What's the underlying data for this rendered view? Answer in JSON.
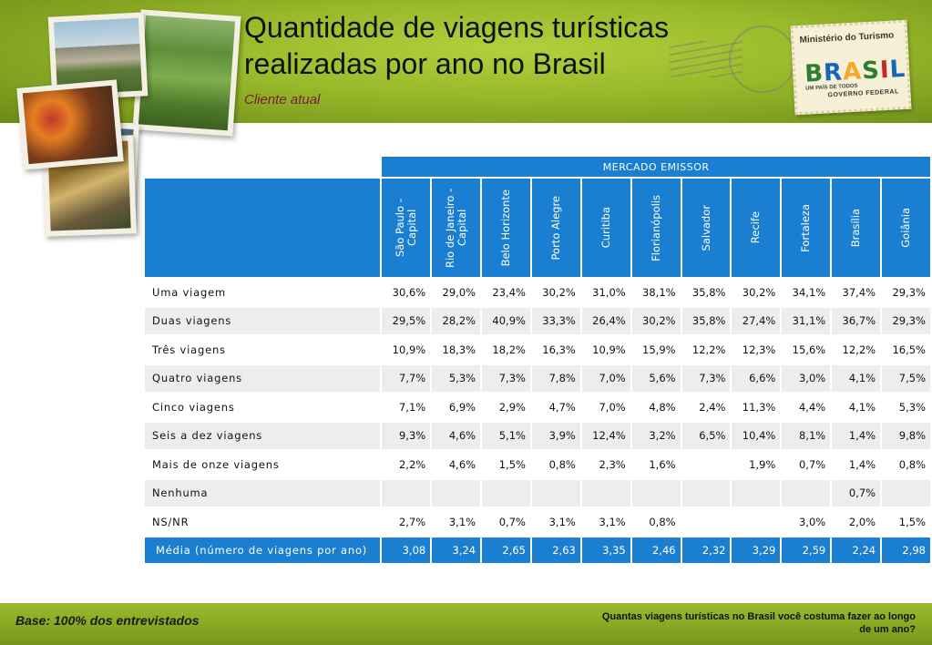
{
  "header": {
    "title": "Quantidade de viagens turísticas realizadas por ano no Brasil",
    "subtitle": "Cliente atual"
  },
  "logo": {
    "ministerio": "Ministério do Turismo",
    "brasil": [
      "B",
      "R",
      "A",
      "S",
      "I",
      "L"
    ],
    "tagline": "UM PAÍS DE TODOS",
    "governo": "GOVERNO FEDERAL"
  },
  "table": {
    "group_header": "MERCADO EMISSOR",
    "columns": [
      "São Paulo - Capital",
      "Rio de Janeiro - Capital",
      "Belo Horizonte",
      "Porto Alegre",
      "Curitiba",
      "Florianópolis",
      "Salvador",
      "Recife",
      "Fortaleza",
      "Brasília",
      "Goiânia"
    ],
    "rows": [
      {
        "label": "Uma viagem",
        "values": [
          "30,6%",
          "29,0%",
          "23,4%",
          "30,2%",
          "31,0%",
          "38,1%",
          "35,8%",
          "30,2%",
          "34,1%",
          "37,4%",
          "29,3%"
        ]
      },
      {
        "label": "Duas viagens",
        "values": [
          "29,5%",
          "28,2%",
          "40,9%",
          "33,3%",
          "26,4%",
          "30,2%",
          "35,8%",
          "27,4%",
          "31,1%",
          "36,7%",
          "29,3%"
        ]
      },
      {
        "label": "Três viagens",
        "values": [
          "10,9%",
          "18,3%",
          "18,2%",
          "16,3%",
          "10,9%",
          "15,9%",
          "12,2%",
          "12,3%",
          "15,6%",
          "12,2%",
          "16,5%"
        ]
      },
      {
        "label": "Quatro viagens",
        "values": [
          "7,7%",
          "5,3%",
          "7,3%",
          "7,8%",
          "7,0%",
          "5,6%",
          "7,3%",
          "6,6%",
          "3,0%",
          "4,1%",
          "7,5%"
        ]
      },
      {
        "label": "Cinco viagens",
        "values": [
          "7,1%",
          "6,9%",
          "2,9%",
          "4,7%",
          "7,0%",
          "4,8%",
          "2,4%",
          "11,3%",
          "4,4%",
          "4,1%",
          "5,3%"
        ]
      },
      {
        "label": "Seis a dez viagens",
        "values": [
          "9,3%",
          "4,6%",
          "5,1%",
          "3,9%",
          "12,4%",
          "3,2%",
          "6,5%",
          "10,4%",
          "8,1%",
          "1,4%",
          "9,8%"
        ]
      },
      {
        "label": "Mais de onze viagens",
        "values": [
          "2,2%",
          "4,6%",
          "1,5%",
          "0,8%",
          "2,3%",
          "1,6%",
          "",
          "1,9%",
          "0,7%",
          "1,4%",
          "0,8%"
        ]
      },
      {
        "label": "Nenhuma",
        "values": [
          "",
          "",
          "",
          "",
          "",
          "",
          "",
          "",
          "",
          "0,7%",
          ""
        ]
      },
      {
        "label": "NS/NR",
        "values": [
          "2,7%",
          "3,1%",
          "0,7%",
          "3,1%",
          "3,1%",
          "0,8%",
          "",
          "",
          "3,0%",
          "2,0%",
          "1,5%"
        ]
      }
    ],
    "media": {
      "label": "Média (número de viagens por ano)",
      "values": [
        "3,08",
        "3,24",
        "2,65",
        "2,63",
        "3,35",
        "2,46",
        "2,32",
        "3,29",
        "2,59",
        "2,24",
        "2,98"
      ]
    }
  },
  "footer": {
    "base": "Base: 100% dos entrevistados",
    "question": "Quantas viagens turísticas no Brasil você costuma fazer ao longo de um ano?"
  }
}
